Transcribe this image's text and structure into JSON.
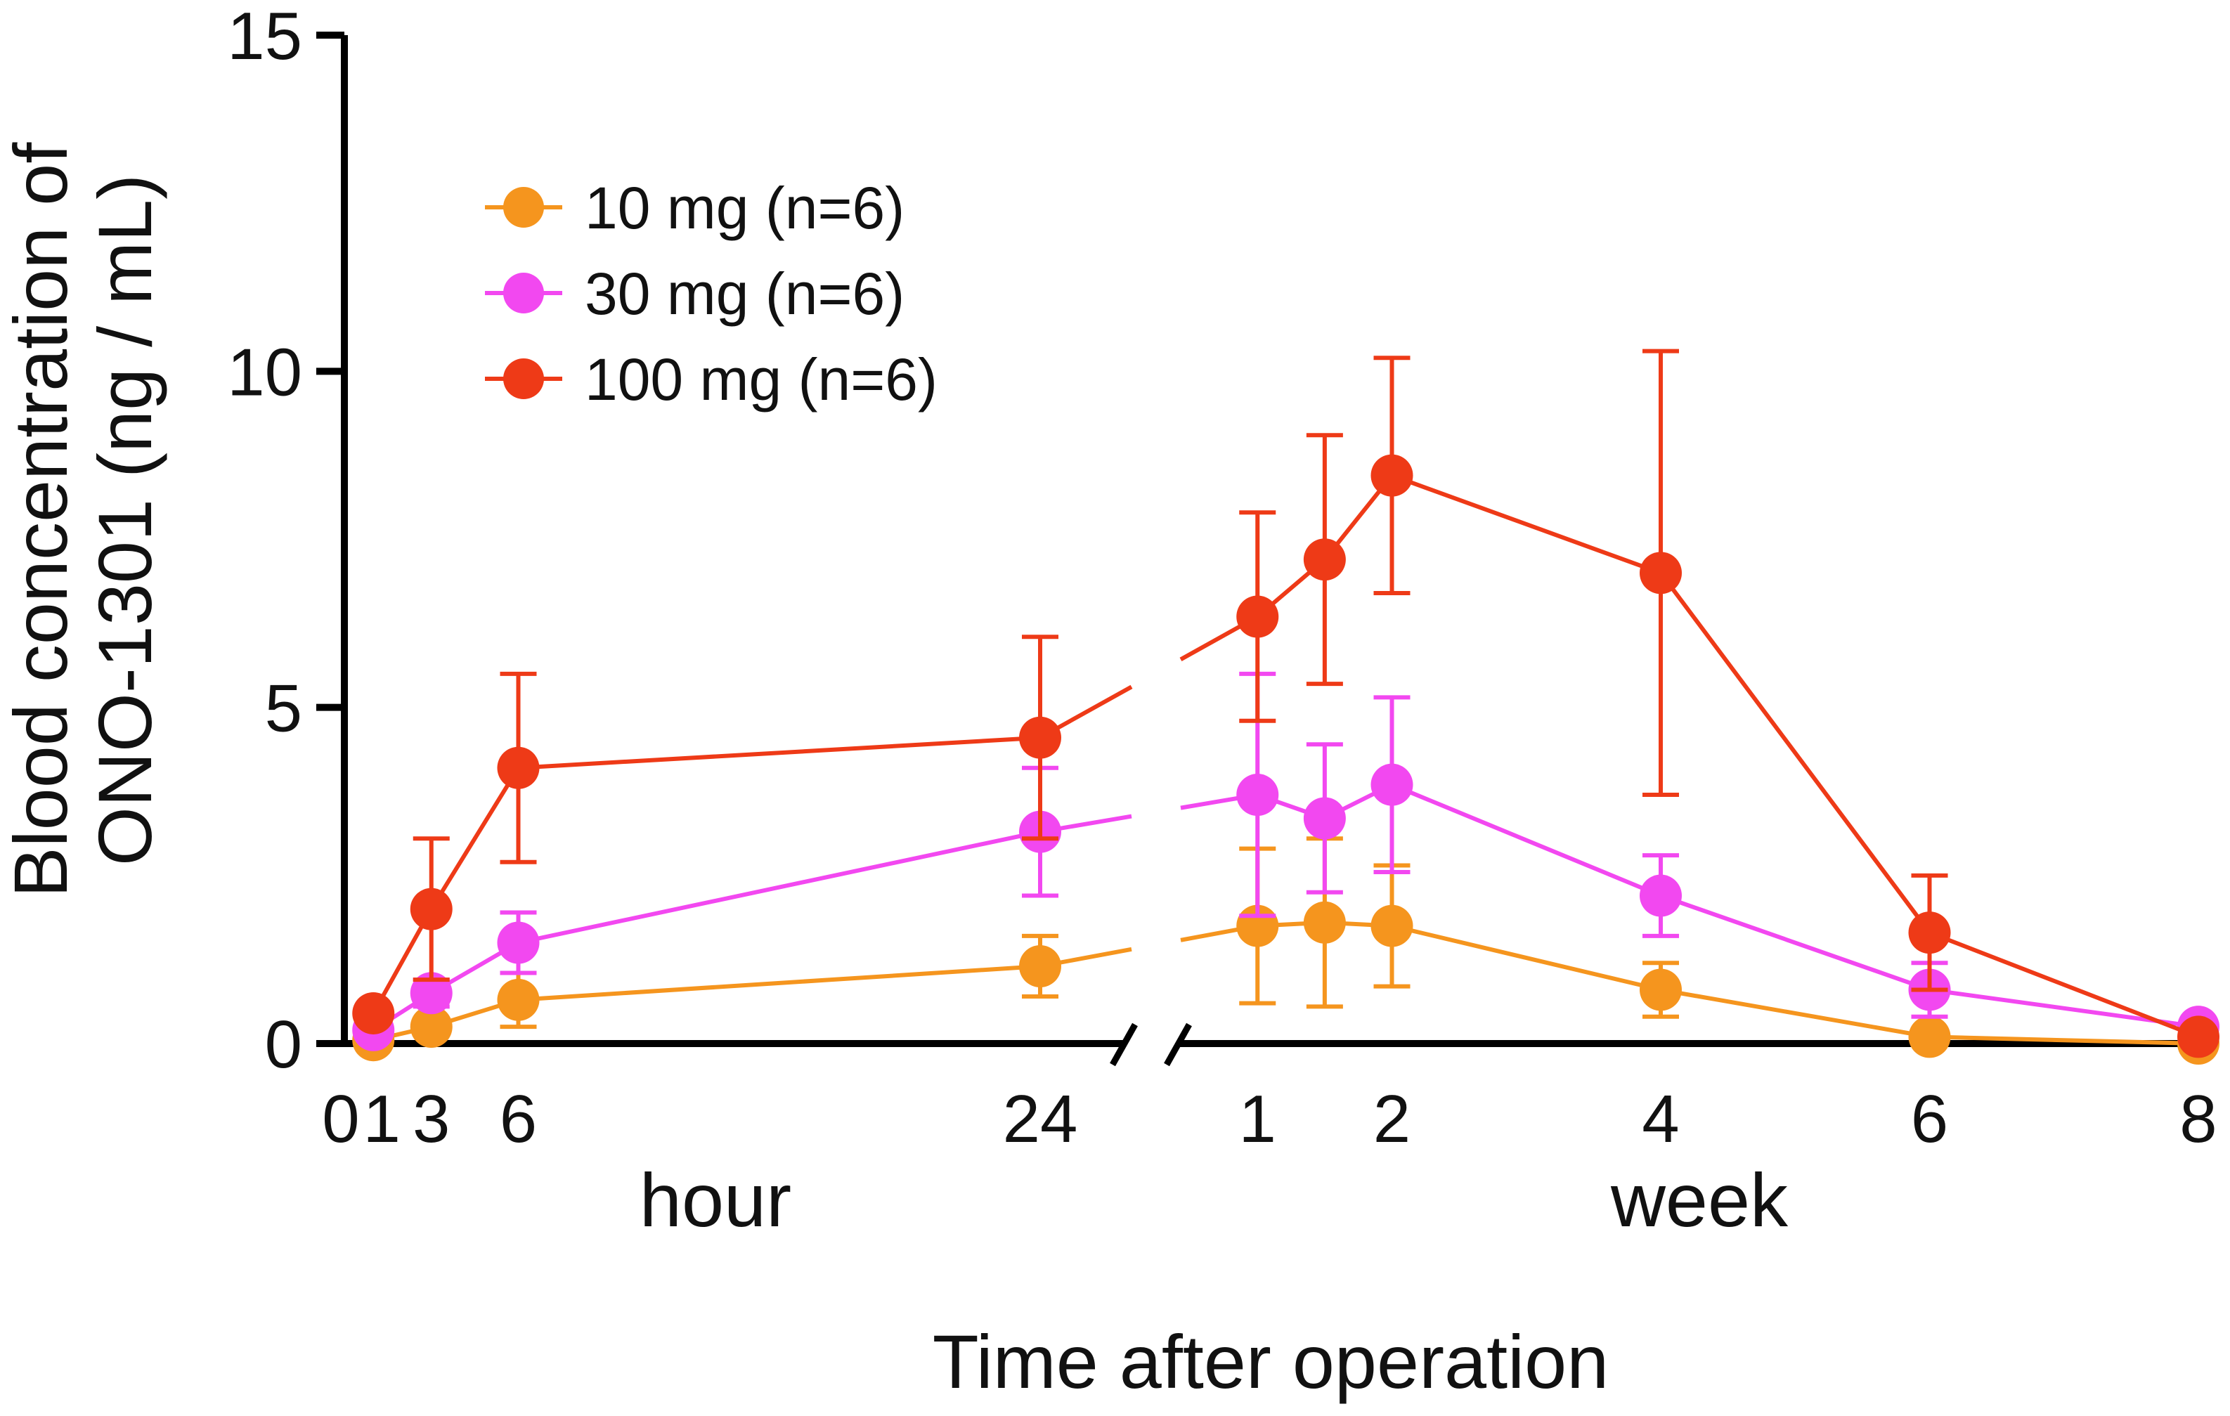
{
  "chart_data": {
    "type": "line",
    "title": "",
    "xlabel": "Time after operation",
    "ylabel_line1": "Blood concentration of",
    "ylabel_line2": "ONO-1301 (ng / mL)",
    "ylim": [
      0,
      15
    ],
    "yticks": [
      0,
      5,
      10,
      15
    ],
    "ytick_labels": [
      "0",
      "5",
      "10",
      "15"
    ],
    "segments": [
      {
        "unit_label": "hour",
        "unit": "hour",
        "range": [
          0,
          24
        ],
        "ticks": [
          0,
          1,
          3,
          6,
          24
        ],
        "tick_labels": [
          "0",
          "1",
          "3",
          "6",
          "24"
        ]
      },
      {
        "unit_label": "week",
        "unit": "week",
        "range": [
          0,
          8
        ],
        "ticks": [
          1,
          2,
          4,
          6,
          8
        ],
        "tick_labels": [
          "1",
          "2",
          "4",
          "6",
          "8"
        ]
      }
    ],
    "points": [
      {
        "segment": 0,
        "x": 1
      },
      {
        "segment": 0,
        "x": 3
      },
      {
        "segment": 0,
        "x": 6
      },
      {
        "segment": 0,
        "x": 24
      },
      {
        "segment": 1,
        "x": 1
      },
      {
        "segment": 1,
        "x": 1.5
      },
      {
        "segment": 1,
        "x": 2
      },
      {
        "segment": 1,
        "x": 4
      },
      {
        "segment": 1,
        "x": 6
      },
      {
        "segment": 1,
        "x": 8
      }
    ],
    "series": [
      {
        "name": "10 mg (n=6)",
        "color": "#F5951E",
        "values": [
          0.05,
          0.25,
          0.65,
          1.15,
          1.75,
          1.8,
          1.75,
          0.8,
          0.1,
          0.0
        ],
        "errors": [
          0.05,
          0.1,
          0.4,
          0.45,
          1.15,
          1.25,
          0.9,
          0.4,
          0.05,
          0.02
        ]
      },
      {
        "name": "30 mg (n=6)",
        "color": "#F248F0",
        "values": [
          0.2,
          0.75,
          1.5,
          3.15,
          3.7,
          3.35,
          3.85,
          2.2,
          0.8,
          0.25
        ],
        "errors": [
          0.05,
          0.2,
          0.45,
          0.95,
          1.8,
          1.1,
          1.3,
          0.6,
          0.4,
          0.05
        ]
      },
      {
        "name": "100 mg (n=6)",
        "color": "#EE3A17",
        "values": [
          0.45,
          2.0,
          4.1,
          4.55,
          6.35,
          7.2,
          8.45,
          7.0,
          1.65,
          0.1
        ],
        "errors": [
          0.05,
          1.05,
          1.4,
          1.5,
          1.55,
          1.85,
          1.75,
          3.3,
          0.85,
          0.05
        ]
      }
    ],
    "legend_position": "top-left"
  }
}
